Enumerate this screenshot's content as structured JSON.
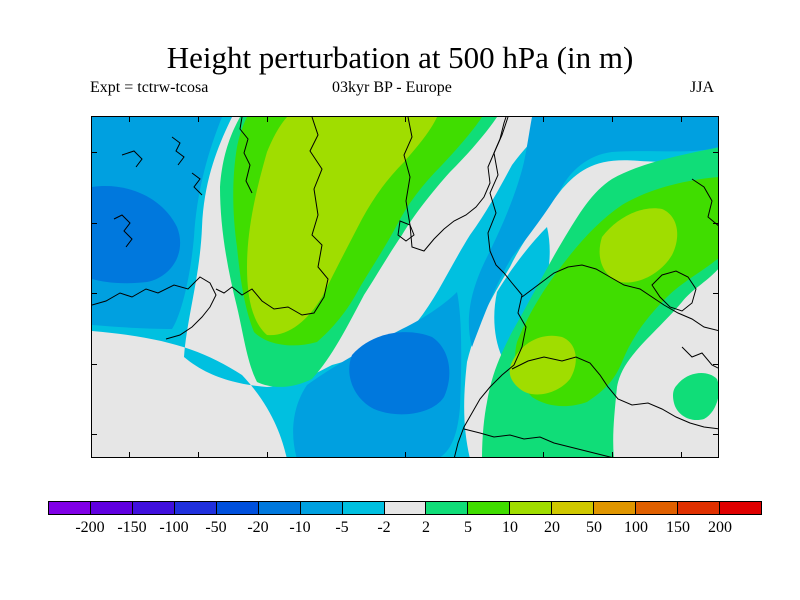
{
  "title": "Height perturbation at 500 hPa (in m)",
  "experiment": "Expt = tctrw-tcosa",
  "period": "03kyr BP - Europe",
  "season": "JJA",
  "colorbar": {
    "labels": [
      "-200",
      "-150",
      "-100",
      "-50",
      "-20",
      "-10",
      "-5",
      "-2",
      "2",
      "5",
      "10",
      "20",
      "50",
      "100",
      "150",
      "200"
    ],
    "colors": [
      "#8000e6",
      "#6000e0",
      "#4010dd",
      "#2030dd",
      "#0050dd",
      "#0078dd",
      "#00a0e0",
      "#00c0e0",
      "#e6e6e6",
      "#10dd78",
      "#40dd00",
      "#a0dd00",
      "#d0c800",
      "#e09600",
      "#e06000",
      "#e03000",
      "#e00000"
    ]
  },
  "field_colors": {
    "grey": "#e6e6e6",
    "cyan": "#00c0e0",
    "lightblue": "#00a0e0",
    "blue": "#0078dd",
    "darkblue": "#0050dd",
    "aqua": "#10dd78",
    "green": "#40dd00",
    "lime": "#a0dd00"
  }
}
